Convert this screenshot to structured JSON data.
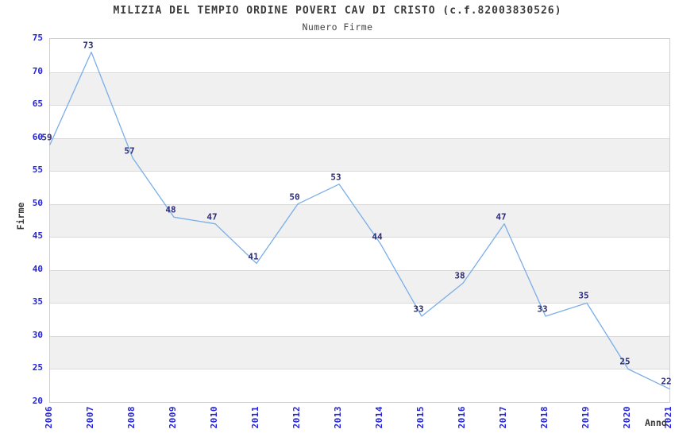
{
  "chart_data": {
    "type": "line",
    "title": "MILIZIA DEL TEMPIO ORDINE POVERI CAV DI CRISTO (c.f.82003830526)",
    "subtitle": "Numero Firme",
    "xlabel": "Anno",
    "ylabel": "Firme",
    "categories": [
      "2006",
      "2007",
      "2008",
      "2009",
      "2010",
      "2011",
      "2012",
      "2013",
      "2014",
      "2015",
      "2016",
      "2017",
      "2018",
      "2019",
      "2020",
      "2021"
    ],
    "values": [
      59,
      73,
      57,
      48,
      47,
      41,
      50,
      53,
      44,
      33,
      38,
      47,
      33,
      35,
      25,
      22
    ],
    "ylim": [
      20,
      75
    ],
    "yticks": [
      20,
      25,
      30,
      35,
      40,
      45,
      50,
      55,
      60,
      65,
      70,
      75
    ],
    "grid": "horizontal",
    "legend_position": "none",
    "point_labels_visible": true,
    "shaded_bands": [
      [
        25,
        30
      ],
      [
        35,
        40
      ],
      [
        45,
        50
      ],
      [
        55,
        60
      ],
      [
        65,
        70
      ]
    ],
    "colors": {
      "line": "#7aaee8",
      "tick_label": "#2323d6",
      "data_label": "#2b2b78",
      "axis_label": "#3a3a3a",
      "title": "#3a3a3a",
      "band": "#f0f0f0",
      "gridline": "#d9d9d9",
      "plot_border": "#cfcfcf",
      "background": "#ffffff"
    }
  }
}
